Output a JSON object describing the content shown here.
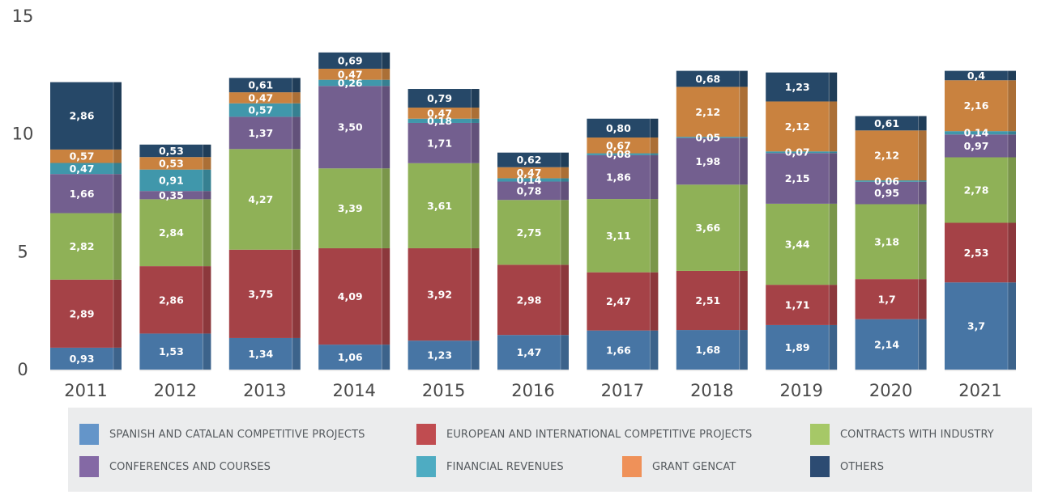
{
  "chart_data": {
    "type": "bar",
    "stacked": true,
    "title": "",
    "xlabel": "",
    "ylabel": "",
    "ylim": [
      0,
      15
    ],
    "yticks": [
      0,
      5,
      10,
      15
    ],
    "grid": false,
    "legend_position": "bottom",
    "decimal_separator": ",",
    "categories": [
      "2011",
      "2012",
      "2013",
      "2014",
      "2015",
      "2016",
      "2017",
      "2018",
      "2019",
      "2020",
      "2021"
    ],
    "series": [
      {
        "name": "SPANISH AND CATALAN COMPETITIVE PROJECTS",
        "color": "#4775a4",
        "legend_color": "#6495c9",
        "values": [
          0.93,
          1.53,
          1.34,
          1.06,
          1.23,
          1.47,
          1.66,
          1.68,
          1.89,
          2.14,
          3.7
        ],
        "labels": [
          "0,93",
          "1,53",
          "1,34",
          "1,06",
          "1,23",
          "1,47",
          "1,66",
          "1,68",
          "1,89",
          "2,14",
          "3,7"
        ]
      },
      {
        "name": "EUROPEAN AND INTERNATIONAL COMPETITIVE PROJECTS",
        "color": "#a54247",
        "legend_color": "#c04c50",
        "values": [
          2.89,
          2.86,
          3.75,
          4.09,
          3.92,
          2.98,
          2.47,
          2.51,
          1.71,
          1.7,
          2.53
        ],
        "labels": [
          "2,89",
          "2,86",
          "3,75",
          "4,09",
          "3,92",
          "2,98",
          "2,47",
          "2,51",
          "1,71",
          "1,7",
          "2,53"
        ]
      },
      {
        "name": "CONTRACTS WITH INDUSTRY",
        "color": "#8fb157",
        "legend_color": "#a6c867",
        "values": [
          2.82,
          2.84,
          4.27,
          3.39,
          3.61,
          2.75,
          3.11,
          3.66,
          3.44,
          3.18,
          2.78
        ],
        "labels": [
          "2,82",
          "2,84",
          "4,27",
          "3,39",
          "3,61",
          "2,75",
          "3,11",
          "3,66",
          "3,44",
          "3,18",
          "2,78"
        ]
      },
      {
        "name": "CONFERENCES AND COURSES",
        "color": "#735f8f",
        "legend_color": "#8469a5",
        "values": [
          1.66,
          0.35,
          1.37,
          3.5,
          1.71,
          0.78,
          1.86,
          1.98,
          2.15,
          0.95,
          0.97
        ],
        "labels": [
          "1,66",
          "0,35",
          "1,37",
          "3,50",
          "1,71",
          "0,78",
          "1,86",
          "1,98",
          "2,15",
          "0,95",
          "0,97"
        ]
      },
      {
        "name": "FINANCIAL REVENUES",
        "color": "#4097ab",
        "legend_color": "#4eacc2",
        "values": [
          0.47,
          0.91,
          0.57,
          0.26,
          0.18,
          0.14,
          0.08,
          0.05,
          0.07,
          0.06,
          0.14
        ],
        "labels": [
          "0,47",
          "0,91",
          "0,57",
          "0,26",
          "0,18",
          "0,14",
          "0,08",
          "0,05",
          "0,07",
          "0,06",
          "0,14"
        ]
      },
      {
        "name": "GRANT GENCAT",
        "color": "#c9823f",
        "legend_color": "#ef9159",
        "values": [
          0.57,
          0.53,
          0.47,
          0.47,
          0.47,
          0.47,
          0.67,
          2.12,
          2.12,
          2.12,
          2.16
        ],
        "labels": [
          "0,57",
          "0,53",
          "0,47",
          "0,47",
          "0,47",
          "0,47",
          "0,67",
          "2,12",
          "2,12",
          "2,12",
          "2,16"
        ]
      },
      {
        "name": "OTHERS",
        "color": "#264868",
        "legend_color": "#2c4b72",
        "values": [
          2.86,
          0.53,
          0.61,
          0.69,
          0.79,
          0.62,
          0.8,
          0.68,
          1.23,
          0.61,
          0.4
        ],
        "labels": [
          "2,86",
          "0,53",
          "0,61",
          "0,69",
          "0,79",
          "0,62",
          "0,80",
          "0,68",
          "1,23",
          "0,61",
          "0,4"
        ]
      }
    ]
  }
}
